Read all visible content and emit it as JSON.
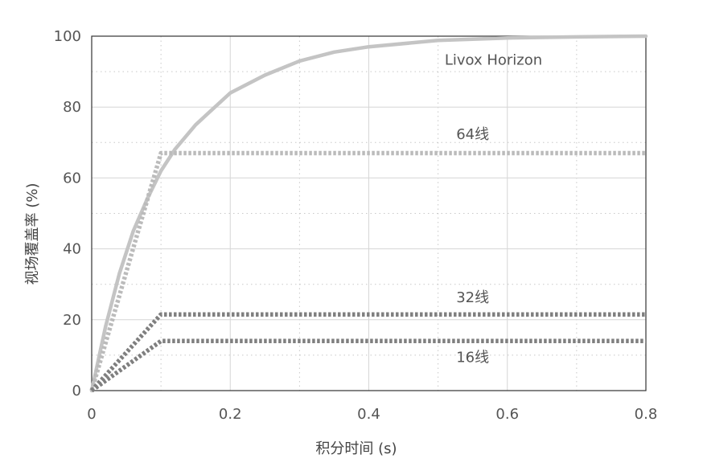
{
  "chart_data": {
    "type": "line",
    "xlabel": "积分时间 (s)",
    "ylabel": "视场覆盖率 (%)",
    "xlim": [
      0,
      0.8
    ],
    "ylim": [
      0,
      100
    ],
    "xticks": [
      0,
      0.2,
      0.4,
      0.6,
      0.8
    ],
    "xtick_labels": [
      "0",
      "0.2",
      "0.4",
      "0.6",
      "0.8"
    ],
    "yticks": [
      0,
      20,
      40,
      60,
      80,
      100
    ],
    "ytick_labels": [
      "0",
      "20",
      "40",
      "60",
      "80",
      "100"
    ],
    "grid": true,
    "series": [
      {
        "name": "Livox Horizon",
        "style": "solid",
        "color": "#c4c4c4",
        "x": [
          0,
          0.02,
          0.04,
          0.06,
          0.08,
          0.1,
          0.12,
          0.15,
          0.2,
          0.25,
          0.3,
          0.35,
          0.4,
          0.5,
          0.6,
          0.7,
          0.8
        ],
        "y": [
          0,
          18,
          33,
          45,
          54,
          62,
          68,
          75,
          84,
          89,
          93,
          95.5,
          97,
          98.8,
          99.5,
          99.8,
          100
        ]
      },
      {
        "name": "64线",
        "style": "dotted",
        "color": "#bbbbbb",
        "x": [
          0,
          0.1,
          0.8
        ],
        "y": [
          0,
          67,
          67
        ]
      },
      {
        "name": "32线",
        "style": "dotted",
        "color": "#7f7f7f",
        "x": [
          0,
          0.1,
          0.8
        ],
        "y": [
          0,
          21.5,
          21.5
        ]
      },
      {
        "name": "16线",
        "style": "dotted",
        "color": "#7f7f7f",
        "x": [
          0,
          0.1,
          0.8
        ],
        "y": [
          0,
          14,
          14
        ]
      }
    ],
    "annotations": [
      {
        "text": "Livox Horizon",
        "x": 0.58,
        "y": 92
      },
      {
        "text": "64线",
        "x": 0.55,
        "y": 71
      },
      {
        "text": "32线",
        "x": 0.55,
        "y": 25
      },
      {
        "text": "16线",
        "x": 0.55,
        "y": 8
      }
    ]
  }
}
